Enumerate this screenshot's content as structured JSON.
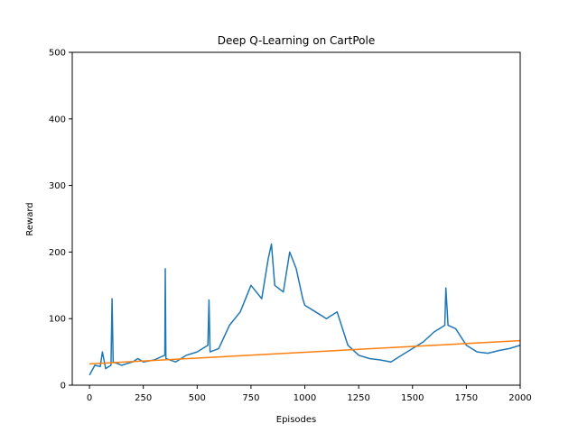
{
  "chart_data": {
    "type": "line",
    "title": "Deep Q-Learning on CartPole",
    "xlabel": "Episodes",
    "ylabel": "Reward",
    "xlim": [
      -80,
      2000
    ],
    "ylim": [
      0,
      500
    ],
    "xticks": [
      0,
      250,
      500,
      750,
      1000,
      1250,
      1500,
      1750,
      2000
    ],
    "yticks": [
      0,
      100,
      200,
      300,
      400,
      500
    ],
    "grid": false,
    "legend": "none",
    "series": [
      {
        "color": "#1f77b4",
        "points": [
          [
            0,
            15
          ],
          [
            25,
            30
          ],
          [
            50,
            28
          ],
          [
            60,
            50
          ],
          [
            75,
            25
          ],
          [
            100,
            30
          ],
          [
            105,
            130
          ],
          [
            110,
            35
          ],
          [
            150,
            30
          ],
          [
            200,
            35
          ],
          [
            225,
            40
          ],
          [
            250,
            35
          ],
          [
            300,
            38
          ],
          [
            350,
            45
          ],
          [
            352,
            175
          ],
          [
            355,
            40
          ],
          [
            400,
            35
          ],
          [
            450,
            45
          ],
          [
            500,
            50
          ],
          [
            550,
            60
          ],
          [
            555,
            128
          ],
          [
            560,
            50
          ],
          [
            600,
            55
          ],
          [
            650,
            90
          ],
          [
            700,
            110
          ],
          [
            750,
            150
          ],
          [
            800,
            130
          ],
          [
            830,
            190
          ],
          [
            845,
            212
          ],
          [
            860,
            150
          ],
          [
            900,
            140
          ],
          [
            930,
            200
          ],
          [
            960,
            175
          ],
          [
            990,
            130
          ],
          [
            1000,
            120
          ],
          [
            1050,
            110
          ],
          [
            1100,
            100
          ],
          [
            1150,
            110
          ],
          [
            1200,
            60
          ],
          [
            1250,
            45
          ],
          [
            1300,
            40
          ],
          [
            1350,
            38
          ],
          [
            1400,
            35
          ],
          [
            1450,
            45
          ],
          [
            1500,
            55
          ],
          [
            1550,
            65
          ],
          [
            1600,
            80
          ],
          [
            1650,
            90
          ],
          [
            1655,
            146
          ],
          [
            1665,
            90
          ],
          [
            1700,
            85
          ],
          [
            1750,
            60
          ],
          [
            1800,
            50
          ],
          [
            1850,
            48
          ],
          [
            1900,
            52
          ],
          [
            1950,
            55
          ],
          [
            2000,
            60
          ]
        ]
      },
      {
        "color": "#ff7f0e",
        "points": [
          [
            0,
            32
          ],
          [
            2000,
            67
          ]
        ]
      }
    ]
  }
}
